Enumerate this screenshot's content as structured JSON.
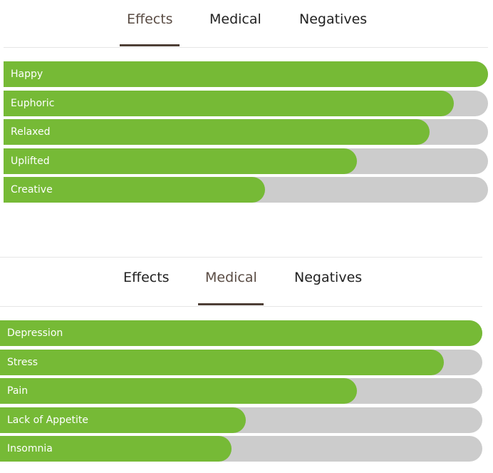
{
  "colors": {
    "fill": "#76ba36",
    "track": "#cccccc",
    "active_tab_text": "#5a4c44",
    "underline": "#4e3f36"
  },
  "panels": [
    {
      "tabs": [
        {
          "label": "Effects",
          "active": true
        },
        {
          "label": "Medical",
          "active": false
        },
        {
          "label": "Negatives",
          "active": false
        }
      ],
      "bars": [
        {
          "label": "Happy",
          "level": 1.0
        },
        {
          "label": "Euphoric",
          "level": 0.93
        },
        {
          "label": "Relaxed",
          "level": 0.88
        },
        {
          "label": "Uplifted",
          "level": 0.73
        },
        {
          "label": "Creative",
          "level": 0.54
        }
      ]
    },
    {
      "tabs": [
        {
          "label": "Effects",
          "active": false
        },
        {
          "label": "Medical",
          "active": true
        },
        {
          "label": "Negatives",
          "active": false
        }
      ],
      "bars": [
        {
          "label": "Depression",
          "level": 1.0
        },
        {
          "label": "Stress",
          "level": 0.92
        },
        {
          "label": "Pain",
          "level": 0.74
        },
        {
          "label": "Lack of Appetite",
          "level": 0.51
        },
        {
          "label": "Insomnia",
          "level": 0.48
        }
      ]
    }
  ]
}
